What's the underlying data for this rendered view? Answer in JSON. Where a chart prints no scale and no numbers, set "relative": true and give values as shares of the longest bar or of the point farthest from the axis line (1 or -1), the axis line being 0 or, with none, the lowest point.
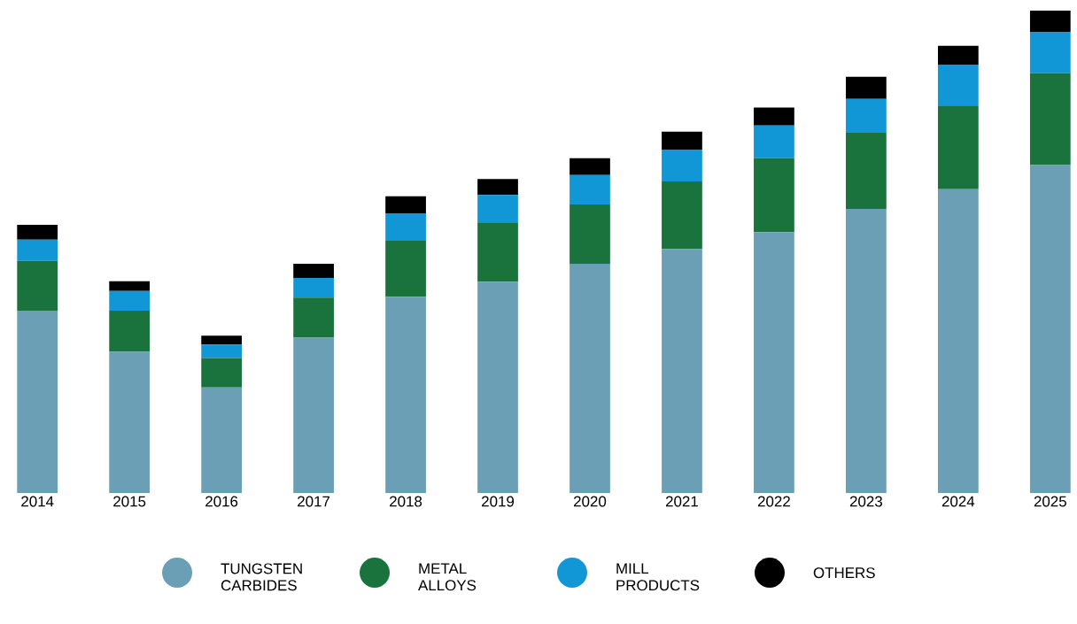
{
  "chart_data": {
    "type": "bar",
    "stacked": true,
    "relative": true,
    "legend": "bottom",
    "categories": [
      "2014",
      "2015",
      "2016",
      "2017",
      "2018",
      "2019",
      "2020",
      "2021",
      "2022",
      "2023",
      "2024",
      "2025"
    ],
    "series": [
      {
        "name": "TUNGSTEN CARBIDES",
        "color": "#6a9fb5",
        "values": [
          0.378,
          0.293,
          0.219,
          0.322,
          0.407,
          0.438,
          0.475,
          0.506,
          0.541,
          0.589,
          0.63,
          0.68
        ]
      },
      {
        "name": "METAL ALLOYS",
        "color": "#1a723c",
        "values": [
          0.103,
          0.085,
          0.061,
          0.083,
          0.116,
          0.123,
          0.123,
          0.14,
          0.153,
          0.158,
          0.173,
          0.19
        ]
      },
      {
        "name": "MILL PRODUCTS",
        "color": "#1297d6",
        "values": [
          0.044,
          0.041,
          0.028,
          0.041,
          0.057,
          0.057,
          0.061,
          0.066,
          0.068,
          0.07,
          0.085,
          0.085
        ]
      },
      {
        "name": "OTHERS",
        "color": "#000000",
        "values": [
          0.031,
          0.02,
          0.018,
          0.029,
          0.035,
          0.033,
          0.035,
          0.037,
          0.037,
          0.046,
          0.039,
          0.045
        ]
      }
    ]
  }
}
